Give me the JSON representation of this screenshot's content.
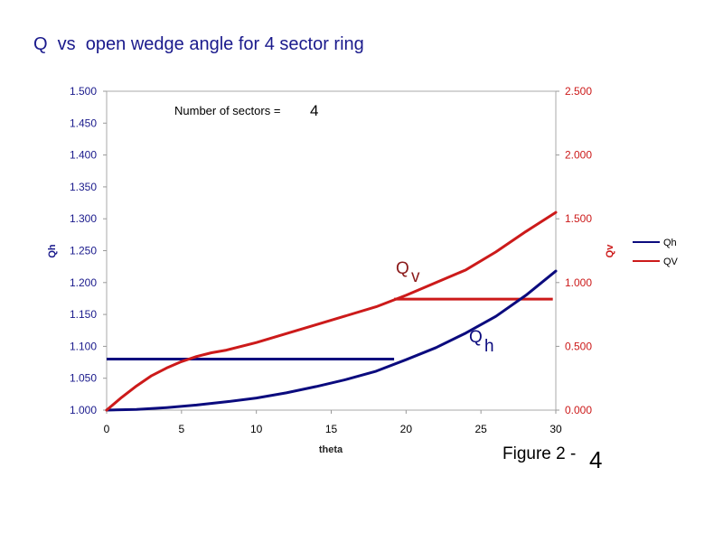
{
  "figure": {
    "title": "Q  vs  open wedge angle for 4 sector ring",
    "label": "Figure 2 -",
    "number": "4"
  },
  "annotation": {
    "text": "Number of sectors =",
    "value": "4"
  },
  "curve_labels": {
    "qv": {
      "main": "Q",
      "sub": "v"
    },
    "qh": {
      "main": "Q",
      "sub": "h"
    }
  },
  "chart_data": {
    "type": "line",
    "xlabel": "theta",
    "ylabel_left": "Qh",
    "ylabel_right": "Qv",
    "xlim": [
      0,
      30
    ],
    "ylim_left": [
      1.0,
      1.5
    ],
    "ylim_right": [
      0.0,
      2.5
    ],
    "x_ticks": [
      "0",
      "5",
      "10",
      "15",
      "20",
      "25",
      "30"
    ],
    "y_left_ticks": [
      "1.000",
      "1.050",
      "1.100",
      "1.150",
      "1.200",
      "1.250",
      "1.300",
      "1.350",
      "1.400",
      "1.450",
      "1.500"
    ],
    "y_right_ticks": [
      "0.000",
      "0.500",
      "1.000",
      "1.500",
      "2.000",
      "2.500"
    ],
    "grid": false,
    "legend_position": "right",
    "series": [
      {
        "name": "Qh",
        "axis": "left",
        "color": "#0b0b7e",
        "x": [
          0,
          2,
          4,
          6,
          8,
          10,
          12,
          14,
          16,
          18,
          20,
          22,
          24,
          26,
          28,
          30
        ],
        "y": [
          1.0,
          1.001,
          1.004,
          1.008,
          1.013,
          1.019,
          1.027,
          1.037,
          1.048,
          1.061,
          1.079,
          1.098,
          1.121,
          1.147,
          1.18,
          1.218
        ]
      },
      {
        "name": "QV",
        "axis": "right",
        "color": "#cc1a1a",
        "x": [
          0,
          1,
          2,
          3,
          4,
          5,
          6,
          7,
          8,
          10,
          12,
          14,
          16,
          18,
          20,
          22,
          24,
          26,
          28,
          30
        ],
        "y": [
          0.0,
          0.1,
          0.19,
          0.27,
          0.33,
          0.38,
          0.42,
          0.45,
          0.47,
          0.53,
          0.6,
          0.67,
          0.74,
          0.81,
          0.9,
          1.0,
          1.1,
          1.24,
          1.4,
          1.55
        ]
      }
    ],
    "reference_lines": [
      {
        "axis": "left",
        "color": "#0b0b7e",
        "y": 1.08,
        "x_start": 0,
        "x_end": 19.2
      },
      {
        "axis": "right",
        "color": "#cc1a1a",
        "y": 0.87,
        "x_start": 19.2,
        "x_end": 29.8
      }
    ]
  }
}
